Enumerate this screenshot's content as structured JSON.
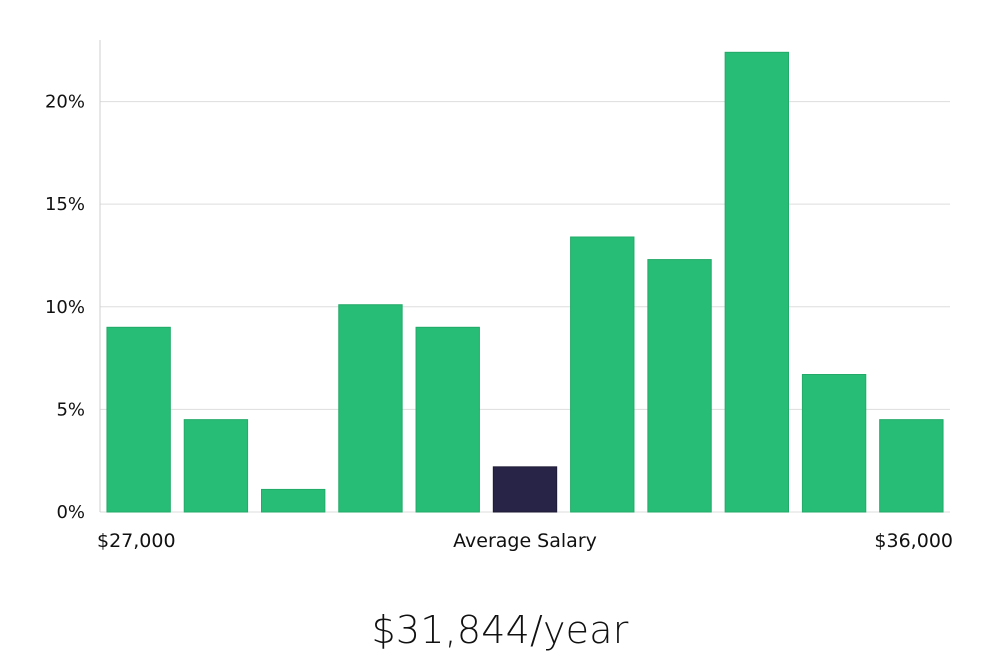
{
  "chart_data": {
    "type": "bar",
    "title": "",
    "xlabel": "Average Salary",
    "ylabel": "",
    "x_min_label": "$27,000",
    "x_max_label": "$36,000",
    "ylim": [
      0,
      23
    ],
    "yticks": [
      0,
      5,
      10,
      15,
      20
    ],
    "ytick_labels": [
      "0%",
      "5%",
      "10%",
      "15%",
      "20%"
    ],
    "values": [
      9.0,
      4.5,
      1.1,
      10.1,
      9.0,
      2.2,
      13.4,
      12.3,
      22.4,
      6.7,
      4.5
    ],
    "highlight_index": 5,
    "colors": {
      "bar": "#28bd76",
      "highlight": "#282447",
      "grid": "#dddddd",
      "axis": "#cfcfcf"
    }
  },
  "summary": {
    "salary_text": "$31,844/year"
  }
}
